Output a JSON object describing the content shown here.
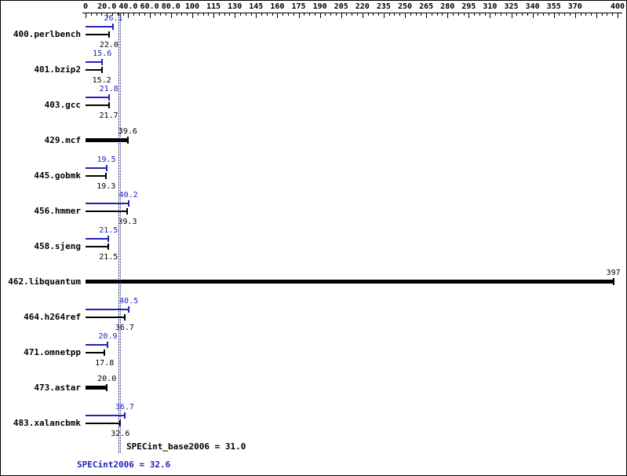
{
  "colors": {
    "peak": "#2222bb",
    "bar": "#000000"
  },
  "chart_data": {
    "type": "bar",
    "orientation": "horizontal",
    "title": "",
    "axis": {
      "position": "top",
      "break_value": 100,
      "ticks": [
        {
          "value": 0,
          "label": "0"
        },
        {
          "value": 20,
          "label": "20.0"
        },
        {
          "value": 40,
          "label": "40.0"
        },
        {
          "value": 60,
          "label": "60.0"
        },
        {
          "value": 80,
          "label": "80.0"
        },
        {
          "value": 100,
          "label": "100"
        },
        {
          "value": 115,
          "label": "115"
        },
        {
          "value": 130,
          "label": "130"
        },
        {
          "value": 145,
          "label": "145"
        },
        {
          "value": 160,
          "label": "160"
        },
        {
          "value": 175,
          "label": "175"
        },
        {
          "value": 190,
          "label": "190"
        },
        {
          "value": 205,
          "label": "205"
        },
        {
          "value": 220,
          "label": "220"
        },
        {
          "value": 235,
          "label": "235"
        },
        {
          "value": 250,
          "label": "250"
        },
        {
          "value": 265,
          "label": "265"
        },
        {
          "value": 280,
          "label": "280"
        },
        {
          "value": 295,
          "label": "295"
        },
        {
          "value": 310,
          "label": "310"
        },
        {
          "value": 325,
          "label": "325"
        },
        {
          "value": 340,
          "label": "340"
        },
        {
          "value": 355,
          "label": "355"
        },
        {
          "value": 370,
          "label": "370"
        },
        {
          "value": 385,
          "label": ""
        },
        {
          "value": 400,
          "label": "400"
        }
      ]
    },
    "benchmarks": [
      {
        "name": "400.perlbench",
        "type": "pair",
        "peak": 26.1,
        "base": 22.0,
        "peak_label": "26.1",
        "base_label": "22.0"
      },
      {
        "name": "401.bzip2",
        "type": "pair",
        "peak": 15.6,
        "base": 15.2,
        "peak_label": "15.6",
        "base_label": "15.2"
      },
      {
        "name": "403.gcc",
        "type": "pair",
        "peak": 21.8,
        "base": 21.7,
        "peak_label": "21.8",
        "base_label": "21.7"
      },
      {
        "name": "429.mcf",
        "type": "single",
        "value": 39.6,
        "value_label": "39.6"
      },
      {
        "name": "445.gobmk",
        "type": "pair",
        "peak": 19.5,
        "base": 19.3,
        "peak_label": "19.5",
        "base_label": "19.3"
      },
      {
        "name": "456.hmmer",
        "type": "pair",
        "peak": 40.2,
        "base": 39.3,
        "peak_label": "40.2",
        "base_label": "39.3"
      },
      {
        "name": "458.sjeng",
        "type": "pair",
        "peak": 21.5,
        "base": 21.5,
        "peak_label": "21.5",
        "base_label": "21.5"
      },
      {
        "name": "462.libquantum",
        "type": "single",
        "value": 397,
        "value_label": "397"
      },
      {
        "name": "464.h264ref",
        "type": "pair",
        "peak": 40.5,
        "base": 36.7,
        "peak_label": "40.5",
        "base_label": "36.7"
      },
      {
        "name": "471.omnetpp",
        "type": "pair",
        "peak": 20.9,
        "base": 17.8,
        "peak_label": "20.9",
        "base_label": "17.8"
      },
      {
        "name": "473.astar",
        "type": "single",
        "value": 20.0,
        "value_label": "20.0"
      },
      {
        "name": "483.xalancbmk",
        "type": "pair",
        "peak": 36.7,
        "base": 32.6,
        "peak_label": "36.7",
        "base_label": "32.6"
      }
    ],
    "summary": {
      "base_value": 31.0,
      "peak_value": 32.6,
      "base_label": "SPECint_base2006 = 31.0",
      "peak_label": "SPECint2006 = 32.6"
    }
  }
}
